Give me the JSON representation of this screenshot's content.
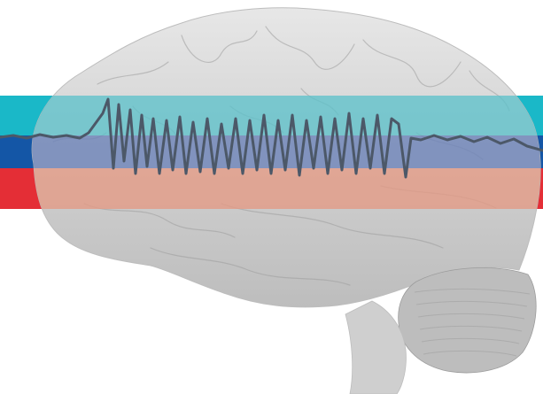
{
  "image": {
    "subject": "brain-eeg-illustration",
    "colors": {
      "background": "#ffffff",
      "brain_fill": "#cfcfcf",
      "brain_shadow": "#bdbdbd",
      "brain_highlight": "#e7e7e7",
      "brain_crease": "#9c9c9c",
      "band_top": "#1ab8c8",
      "band_middle": "#1456a6",
      "band_bottom": "#e42e36",
      "overlay_top": "#5ec2ca",
      "overlay_middle": "#6a82b8",
      "overlay_bottom": "#e49a84",
      "eeg_trace": "#4c5868"
    }
  }
}
